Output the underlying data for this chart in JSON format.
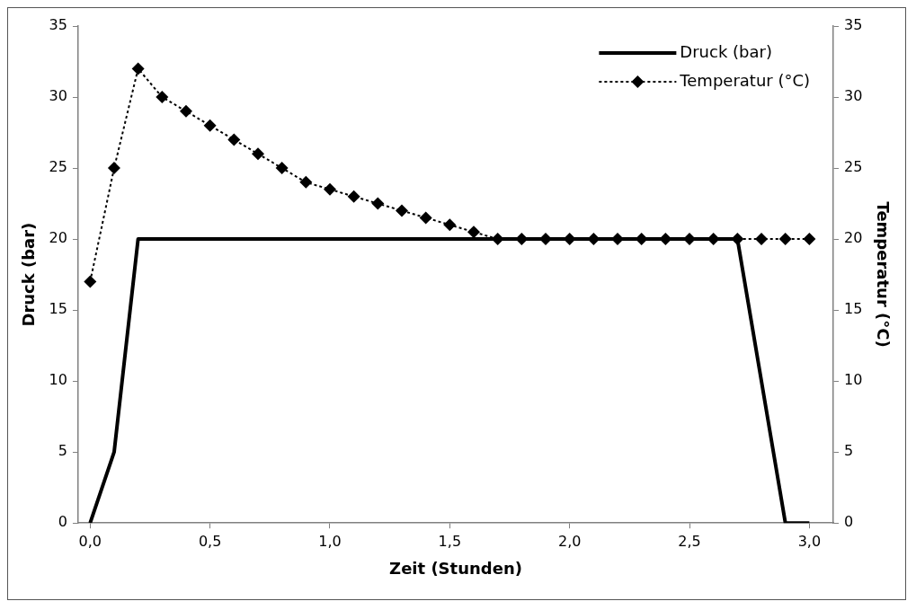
{
  "chart_data": {
    "type": "line",
    "xlabel": "Zeit (Stunden)",
    "ylabel": "Druck (bar)",
    "y2label": "Temperatur (°C)",
    "x": [
      0,
      0.1,
      0.2,
      0.3,
      0.4,
      0.5,
      0.6,
      0.7,
      0.8,
      0.9,
      1.0,
      1.1,
      1.2,
      1.3,
      1.4,
      1.5,
      1.6,
      1.7,
      1.8,
      1.9,
      2.0,
      2.1,
      2.2,
      2.3,
      2.4,
      2.5,
      2.6,
      2.7,
      2.8,
      2.9,
      3.0
    ],
    "series": [
      {
        "name": "Druck (bar)",
        "color": "#000000",
        "marker": "none",
        "line_style": "solid",
        "values": [
          0,
          5,
          20,
          20,
          20,
          20,
          20,
          20,
          20,
          20,
          20,
          20,
          20,
          20,
          20,
          20,
          20,
          20,
          20,
          20,
          20,
          20,
          20,
          20,
          20,
          20,
          20,
          20,
          null,
          0,
          0
        ]
      },
      {
        "name": "Temperatur (°C)",
        "color": "#000000",
        "marker": "diamond",
        "line_style": "dotted",
        "axis": "y2",
        "values": [
          17,
          25,
          32,
          30,
          29,
          28,
          27,
          26,
          25,
          24,
          23.5,
          23,
          22.5,
          22,
          21.5,
          21,
          20.5,
          20,
          20,
          20,
          20,
          20,
          20,
          20,
          20,
          20,
          20,
          20,
          20,
          20,
          20
        ]
      }
    ],
    "xlim": [
      -0.05,
      3.1
    ],
    "xticks": [
      {
        "value": 0,
        "label": "0,0"
      },
      {
        "value": 0.5,
        "label": "0,5"
      },
      {
        "value": 1,
        "label": "1,0"
      },
      {
        "value": 1.5,
        "label": "1,5"
      },
      {
        "value": 2,
        "label": "2,0"
      },
      {
        "value": 2.5,
        "label": "2,5"
      },
      {
        "value": 3,
        "label": "3,0"
      }
    ],
    "ylim": [
      0,
      35
    ],
    "yticks": [
      0,
      5,
      10,
      15,
      20,
      25,
      30,
      35
    ],
    "y2lim": [
      0,
      35
    ],
    "y2ticks": [
      0,
      5,
      10,
      15,
      20,
      25,
      30,
      35
    ],
    "grid": false,
    "legend": "top right"
  }
}
